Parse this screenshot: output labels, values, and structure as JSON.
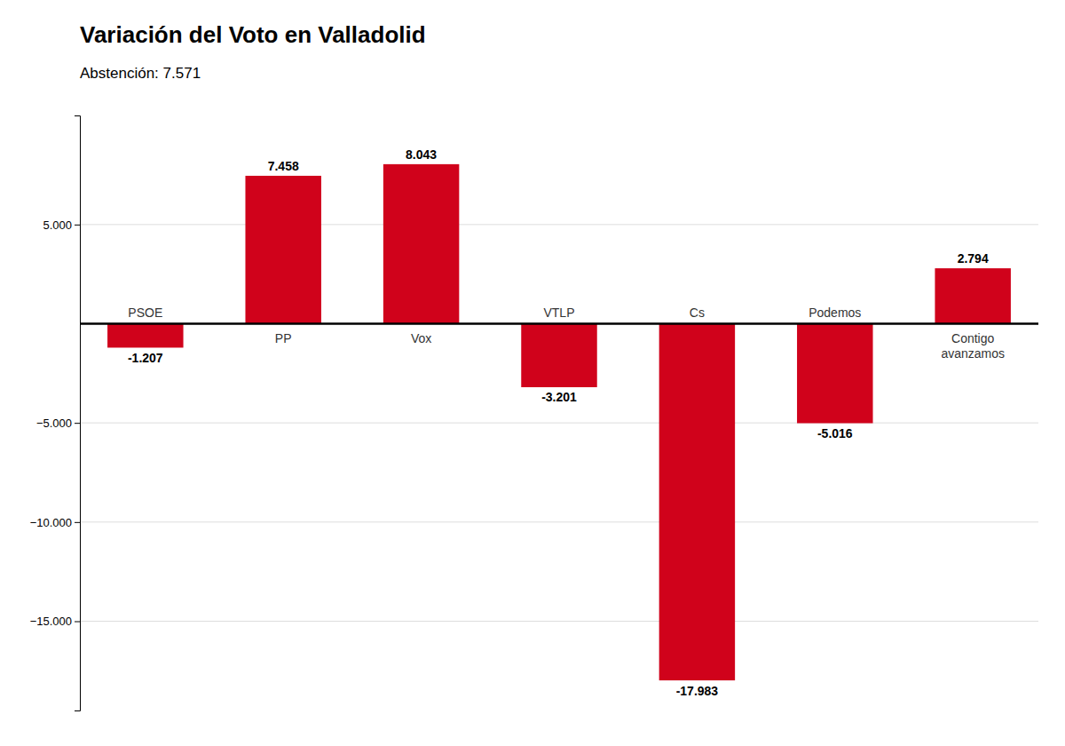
{
  "chart_data": {
    "type": "bar",
    "title": "Variación del Voto en Valladolid",
    "subtitle": "Abstención: 7.571",
    "categories": [
      "PSOE",
      "PP",
      "Vox",
      "VTLP",
      "Cs",
      "Podemos",
      "Contigo\navanzamos"
    ],
    "values": [
      -1207,
      7458,
      8043,
      -3201,
      -17983,
      -5016,
      2794
    ],
    "value_labels": [
      "-1.207",
      "7.458",
      "8.043",
      "-3.201",
      "-17.983",
      "-5.016",
      "2.794"
    ],
    "data_labels": true,
    "color": "#D0021B",
    "ylim": [
      -19500,
      10500
    ],
    "yticks": [
      {
        "value": 5000,
        "label": "5.000"
      },
      {
        "value": -5000,
        "label": "−5.000"
      },
      {
        "value": -10000,
        "label": "−10.000"
      },
      {
        "value": -15000,
        "label": "−15.000"
      }
    ],
    "grid": true
  }
}
